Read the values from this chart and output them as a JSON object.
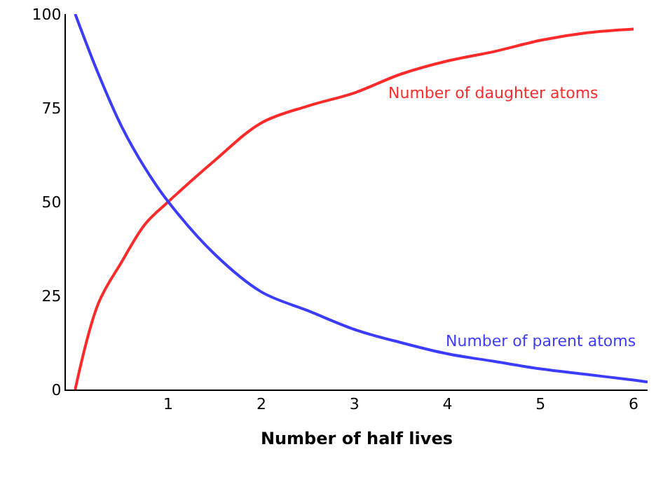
{
  "chart_data": {
    "type": "line",
    "xlabel": "Number of half lives",
    "xlim": [
      -0.1,
      6.15
    ],
    "xticks": [
      1,
      2,
      3,
      4,
      5,
      6
    ],
    "ylim": [
      0,
      100
    ],
    "yticks": [
      0,
      25,
      50,
      75,
      100
    ],
    "grid": false,
    "legend": false,
    "marker": "none",
    "line_style": "solid",
    "series": [
      {
        "name": "Number of daughter atoms",
        "color": "#ff2a2a",
        "x": [
          0,
          0.25,
          0.5,
          0.75,
          1,
          1.5,
          2,
          2.5,
          3,
          3.5,
          4,
          4.5,
          5,
          5.5,
          6
        ],
        "values": [
          0,
          23,
          34,
          44,
          50,
          61,
          71,
          75.5,
          79,
          84,
          87.5,
          90,
          93,
          95,
          96
        ]
      },
      {
        "name": "Number of parent atoms",
        "color": "#3c3cff",
        "x": [
          0,
          0.25,
          0.5,
          0.75,
          1,
          1.5,
          2,
          2.5,
          3,
          3.5,
          4,
          4.5,
          5,
          5.5,
          6,
          6.15
        ],
        "values": [
          100,
          84,
          70,
          59,
          50,
          36,
          26,
          21,
          16,
          12.5,
          9.5,
          7.5,
          5.5,
          4,
          2.5,
          2
        ]
      }
    ]
  }
}
